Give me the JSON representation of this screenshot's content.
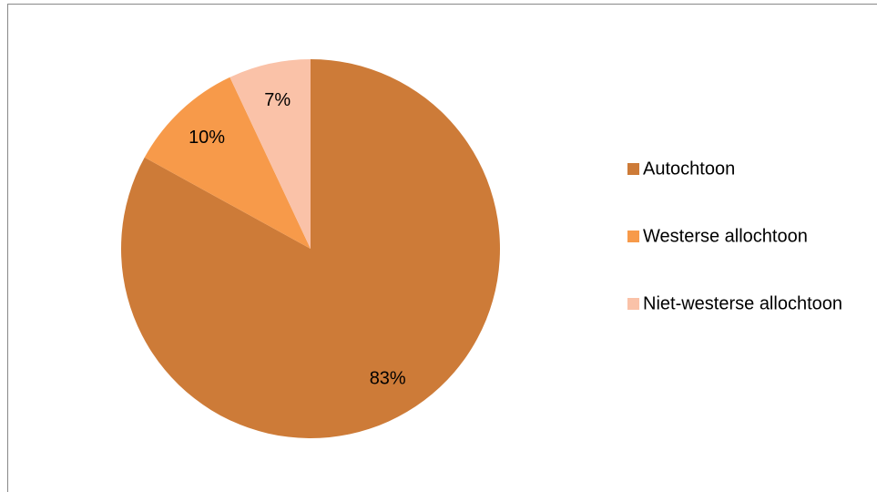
{
  "chart_data": {
    "type": "pie",
    "categories": [
      "Autochtoon",
      "Westerse allochtoon",
      "Niet-westerse allochtoon"
    ],
    "values": [
      83,
      10,
      7
    ],
    "value_labels": [
      "83%",
      "10%",
      "7%"
    ],
    "colors": [
      "#cd7b38",
      "#f79a4a",
      "#fac2a8"
    ],
    "legend": "right"
  }
}
